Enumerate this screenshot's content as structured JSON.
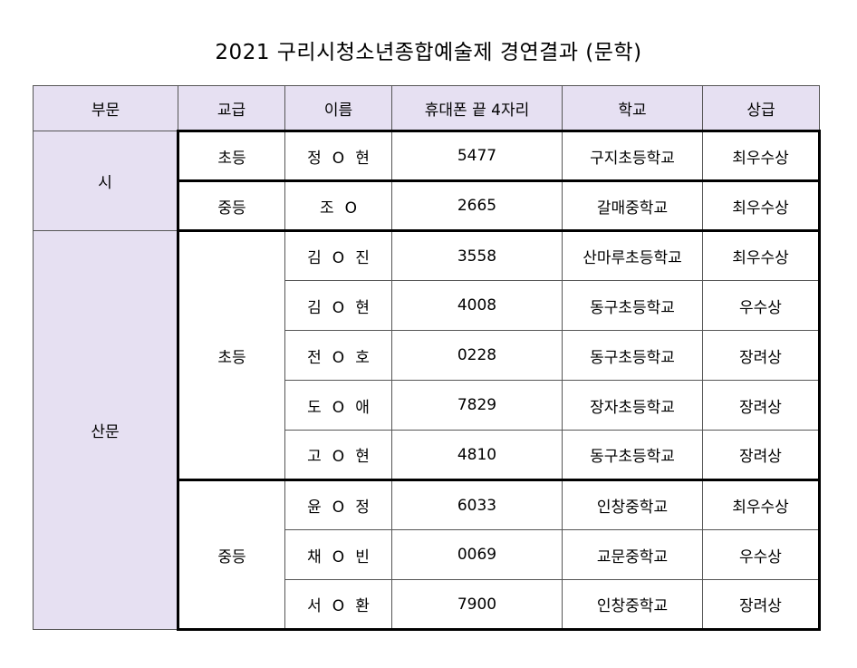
{
  "title": "2021 구리시청소년종합예술제 경연결과 (문학)",
  "headers": [
    "부문",
    "교급",
    "이름",
    "휴대폰 끝 4자리",
    "학교",
    "상급"
  ],
  "sections": {
    "si": "시",
    "sanmun": "산문"
  },
  "levels": {
    "elementary": "초등",
    "middle": "중등"
  },
  "rows": [
    {
      "name": [
        "정",
        "O",
        "현"
      ],
      "phone": "5477",
      "school": "구지초등학교",
      "award": "최우수상"
    },
    {
      "name": [
        "조",
        "O"
      ],
      "phone": "2665",
      "school": "갈매중학교",
      "award": "최우수상"
    },
    {
      "name": [
        "김",
        "O",
        "진"
      ],
      "phone": "3558",
      "school": "산마루초등학교",
      "award": "최우수상"
    },
    {
      "name": [
        "김",
        "O",
        "현"
      ],
      "phone": "4008",
      "school": "동구초등학교",
      "award": "우수상"
    },
    {
      "name": [
        "전",
        "O",
        "호"
      ],
      "phone": "0228",
      "school": "동구초등학교",
      "award": "장려상"
    },
    {
      "name": [
        "도",
        "O",
        "애"
      ],
      "phone": "7829",
      "school": "장자초등학교",
      "award": "장려상"
    },
    {
      "name": [
        "고",
        "O",
        "현"
      ],
      "phone": "4810",
      "school": "동구초등학교",
      "award": "장려상"
    },
    {
      "name": [
        "윤",
        "O",
        "정"
      ],
      "phone": "6033",
      "school": "인창중학교",
      "award": "최우수상"
    },
    {
      "name": [
        "채",
        "O",
        "빈"
      ],
      "phone": "0069",
      "school": "교문중학교",
      "award": "우수상"
    },
    {
      "name": [
        "서",
        "O",
        "환"
      ],
      "phone": "7900",
      "school": "인창중학교",
      "award": "장려상"
    }
  ]
}
